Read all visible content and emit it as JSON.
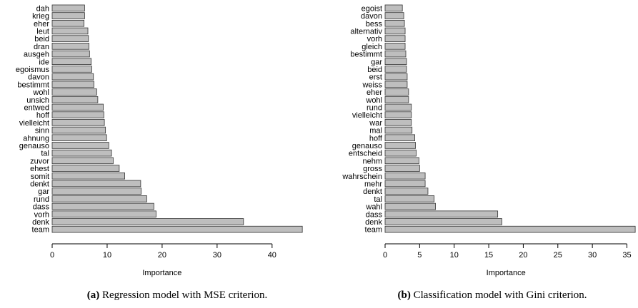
{
  "chart_data": [
    {
      "type": "bar",
      "orientation": "horizontal",
      "categories": [
        "dah",
        "krieg",
        "eher",
        "leut",
        "beid",
        "dran",
        "ausgeh",
        "ide",
        "egoismus",
        "davon",
        "bestimmt",
        "wohl",
        "unsich",
        "entwed",
        "hoff",
        "vielleicht",
        "sinn",
        "ahnung",
        "genauso",
        "tal",
        "zuvor",
        "ehest",
        "somit",
        "denkt",
        "gar",
        "rund",
        "dass",
        "vorh",
        "denk",
        "team"
      ],
      "values": [
        5.9,
        5.9,
        5.8,
        6.5,
        6.6,
        6.7,
        6.8,
        7.1,
        7.2,
        7.5,
        7.6,
        8.1,
        8.3,
        9.3,
        9.4,
        9.5,
        9.7,
        9.9,
        10.3,
        10.8,
        11.1,
        12.2,
        13.2,
        16.1,
        16.2,
        17.2,
        18.5,
        18.9,
        34.8,
        45.5
      ],
      "xlabel": "Importance",
      "xticks": [
        0,
        10,
        20,
        30,
        40
      ],
      "xlim": [
        0,
        46
      ],
      "caption_letter": "(a)",
      "caption_text": " Regression model with MSE criterion."
    },
    {
      "type": "bar",
      "orientation": "horizontal",
      "categories": [
        "egoist",
        "davon",
        "bess",
        "alternativ",
        "vorh",
        "gleich",
        "bestimmt",
        "gar",
        "beid",
        "erst",
        "weiss",
        "eher",
        "wohl",
        "rund",
        "vielleicht",
        "war",
        "mal",
        "hoff",
        "genauso",
        "entscheid",
        "nehm",
        "gross",
        "wahrschein",
        "mehr",
        "denkt",
        "tal",
        "wahl",
        "dass",
        "denk",
        "team"
      ],
      "values": [
        2.5,
        2.7,
        2.8,
        2.9,
        2.9,
        2.9,
        3.0,
        3.1,
        3.1,
        3.2,
        3.2,
        3.4,
        3.4,
        3.8,
        3.8,
        3.8,
        3.9,
        4.3,
        4.4,
        4.5,
        4.9,
        5.0,
        5.8,
        5.8,
        6.2,
        7.1,
        7.3,
        16.3,
        16.9,
        36.2
      ],
      "xlabel": "Importance",
      "xticks": [
        0,
        5,
        10,
        15,
        20,
        25,
        30,
        35
      ],
      "xlim": [
        0,
        36.5
      ],
      "caption_letter": "(b)",
      "caption_text": " Classification model with Gini criterion."
    }
  ]
}
